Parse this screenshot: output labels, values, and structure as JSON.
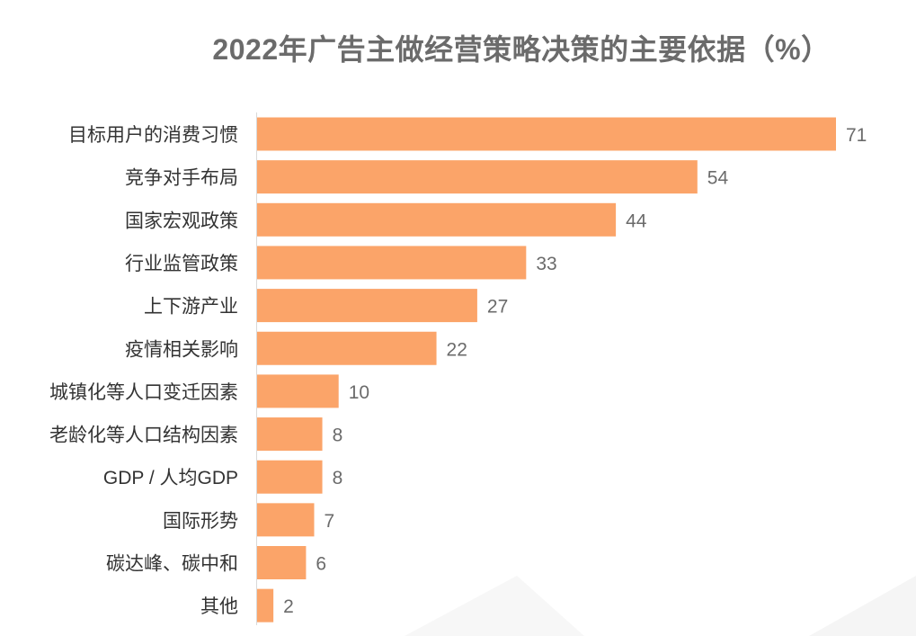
{
  "chart_data": {
    "type": "bar",
    "orientation": "horizontal",
    "title": "2022年广告主做经营策略决策的主要依据（%）",
    "categories": [
      "目标用户的消费习惯",
      "竞争对手布局",
      "国家宏观政策",
      "行业监管政策",
      "上下游产业",
      "疫情相关影响",
      "城镇化等人口变迁因素",
      "老龄化等人口结构因素",
      "GDP / 人均GDP",
      "国际形势",
      "碳达峰、碳中和",
      "其他"
    ],
    "values": [
      71,
      54,
      44,
      33,
      27,
      22,
      10,
      8,
      8,
      7,
      6,
      2
    ],
    "xlim": [
      0,
      71
    ],
    "grid": false,
    "data_labels": true,
    "bar_color": "#FBA469",
    "label_color": "#333333",
    "value_color": "#6b6b6b"
  }
}
